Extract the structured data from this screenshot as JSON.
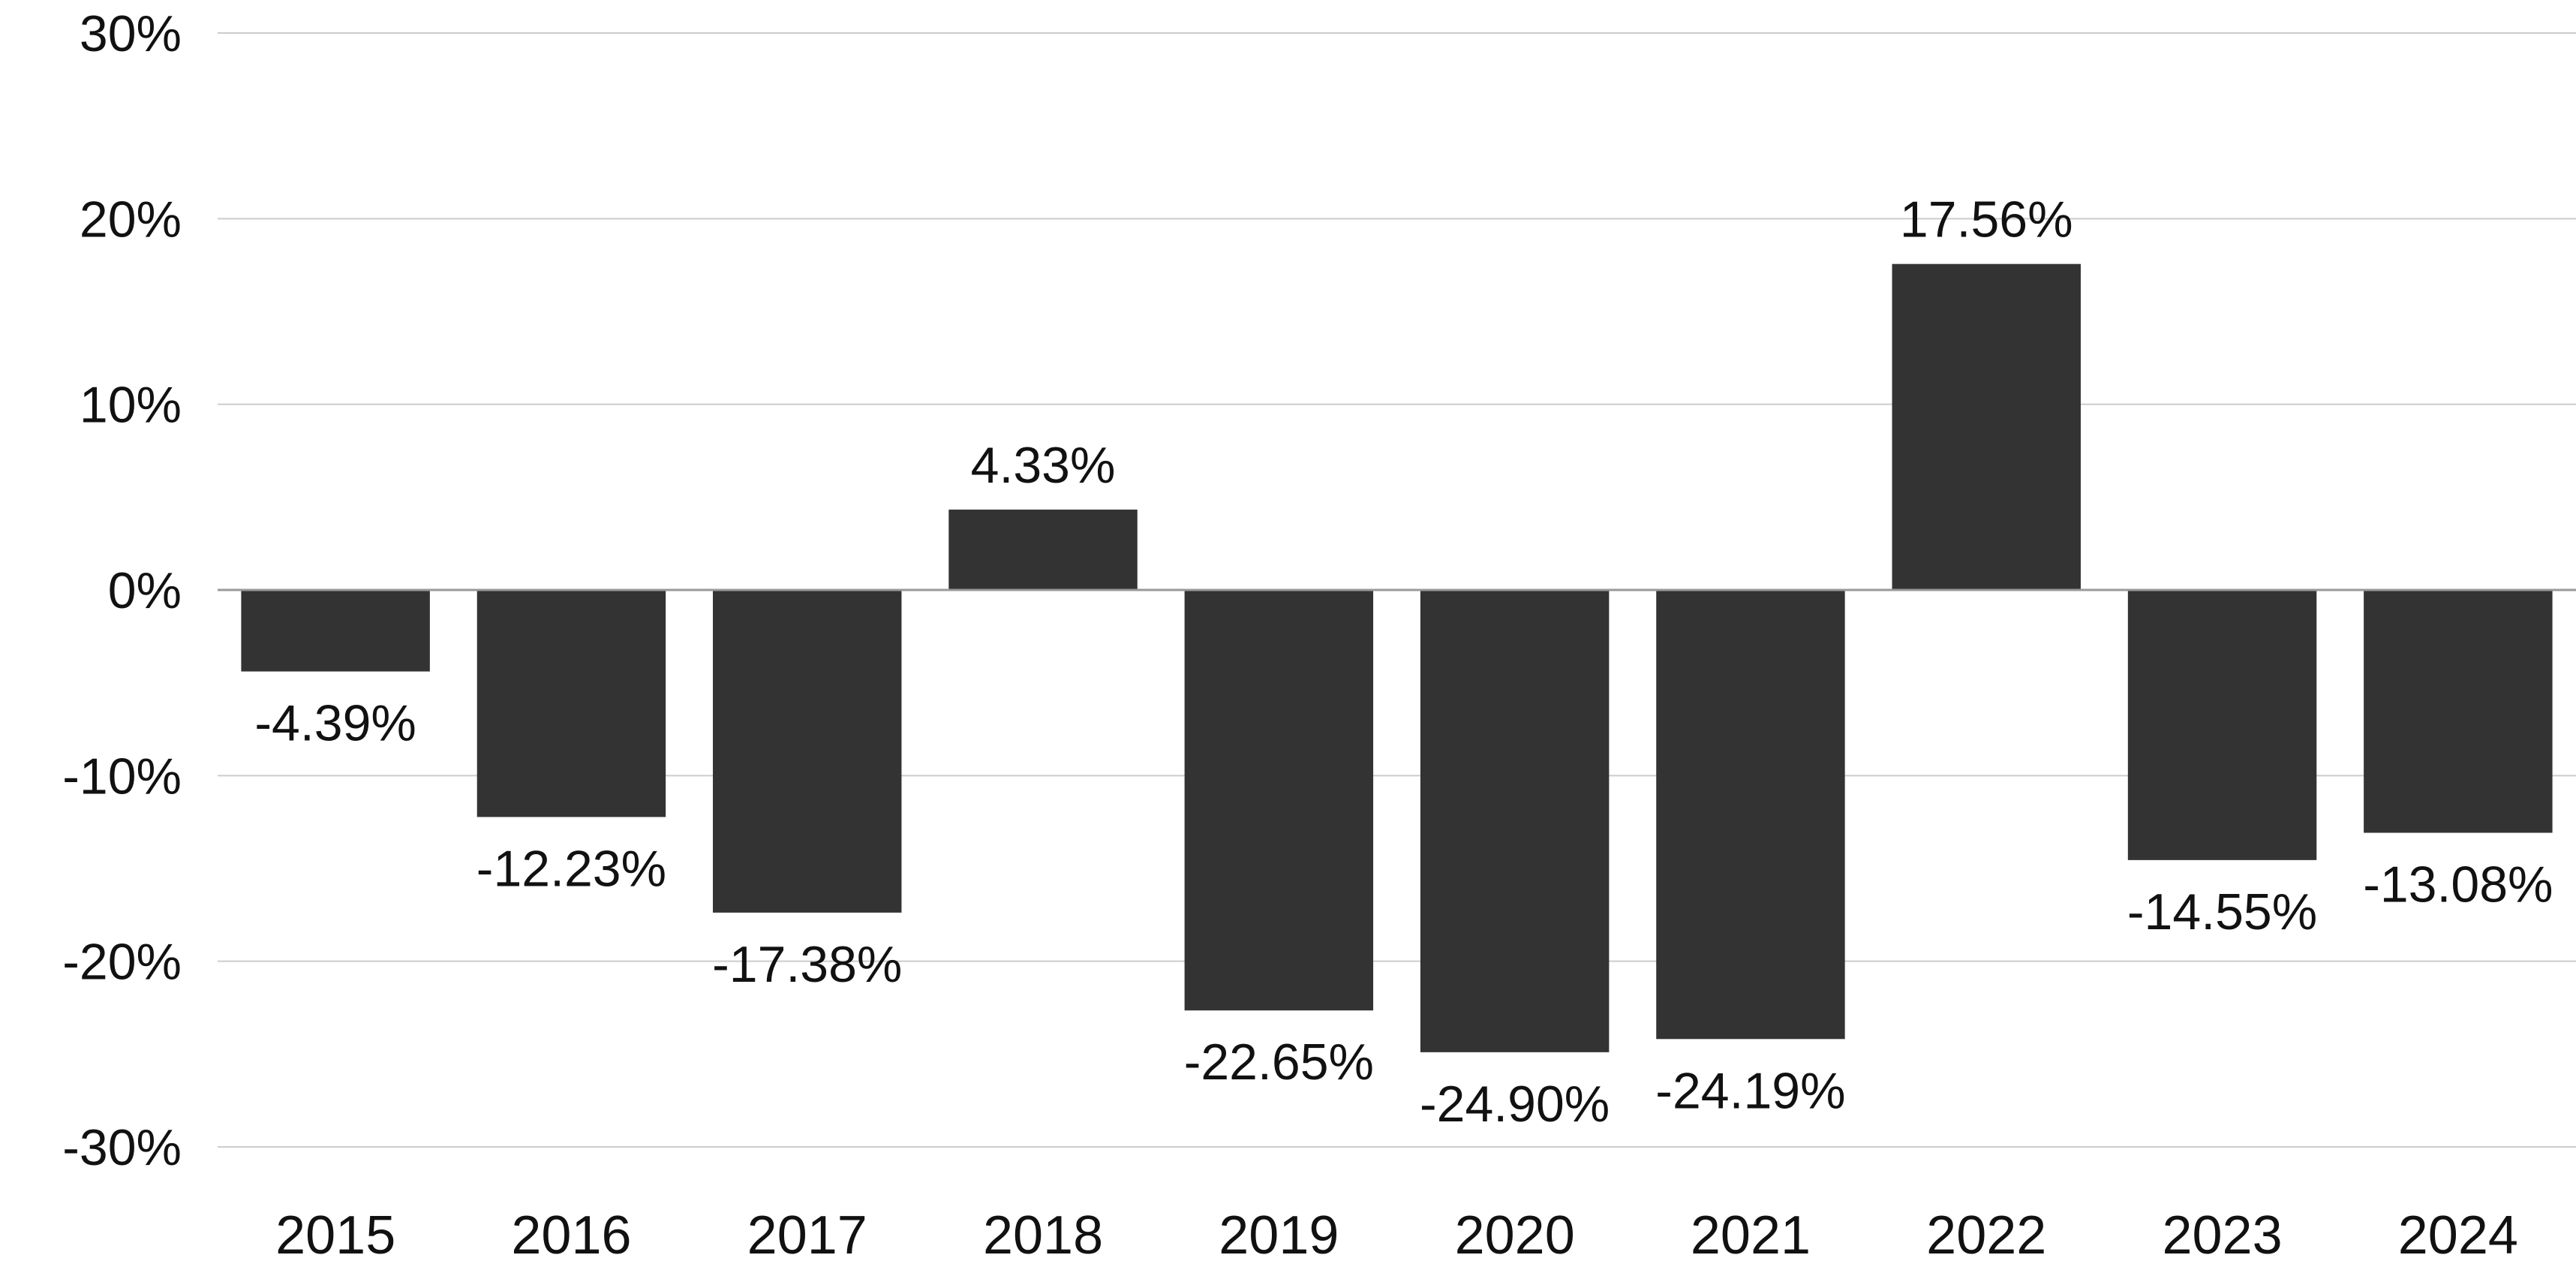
{
  "chart_data": {
    "type": "bar",
    "title": "",
    "xlabel": "",
    "ylabel": "",
    "categories": [
      "2015",
      "2016",
      "2017",
      "2018",
      "2019",
      "2020",
      "2021",
      "2022",
      "2023",
      "2024"
    ],
    "values": [
      -4.39,
      -12.23,
      -17.38,
      4.33,
      -22.65,
      -24.9,
      -24.19,
      17.56,
      -14.55,
      -13.08
    ],
    "data_labels": [
      "-4.39%",
      "-12.23%",
      "-17.38%",
      "4.33%",
      "-22.65%",
      "-24.90%",
      "-24.19%",
      "17.56%",
      "-14.55%",
      "-13.08%"
    ],
    "ylim": [
      -30,
      30
    ],
    "yticks": [
      30,
      20,
      10,
      0,
      -10,
      -20,
      -30
    ],
    "ytick_labels": [
      "30%",
      "20%",
      "10%",
      "0%",
      "-10%",
      "-20%",
      "-30%"
    ],
    "grid": true,
    "legend": "none",
    "colors": {
      "bar": "#333333",
      "grid": "#cccccc",
      "zero_line": "#999999",
      "text": "#111111"
    }
  }
}
